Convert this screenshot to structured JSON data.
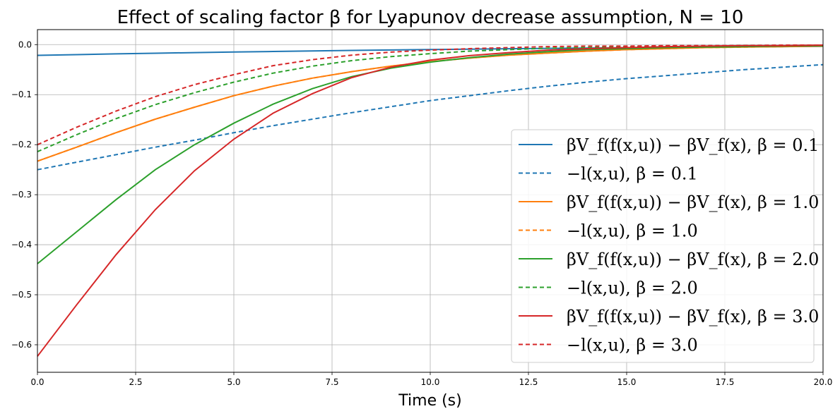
{
  "chart_data": {
    "type": "line",
    "title": "Effect of scaling factor β for Lyapunov decrease assumption, N = 10",
    "xlabel": "Time (s)",
    "ylabel": "",
    "xlim": [
      0,
      20
    ],
    "ylim": [
      -0.655,
      0.03
    ],
    "grid": true,
    "legend_position": "right",
    "xticks": [
      "0.0",
      "2.5",
      "5.0",
      "7.5",
      "10.0",
      "12.5",
      "15.0",
      "17.5",
      "20.0"
    ],
    "yticks": [
      "0.0",
      "−0.1",
      "−0.2",
      "−0.3",
      "−0.4",
      "−0.5",
      "−0.6"
    ],
    "x": [
      0,
      1,
      2,
      3,
      4,
      5,
      6,
      7,
      8,
      9,
      10,
      11,
      12,
      13,
      14,
      15,
      16,
      17,
      18,
      19,
      20
    ],
    "series": [
      {
        "name": "βV_f(f(x,u)) − βV_f(x), β = 0.1",
        "color": "#1f77b4",
        "dash": "solid",
        "values": [
          -0.0215,
          -0.02,
          -0.0185,
          -0.0172,
          -0.016,
          -0.0148,
          -0.0137,
          -0.0126,
          -0.0116,
          -0.0107,
          -0.0098,
          -0.009,
          -0.0082,
          -0.0075,
          -0.0068,
          -0.0061,
          -0.0055,
          -0.0049,
          -0.0044,
          -0.0039,
          -0.0034
        ]
      },
      {
        "name": "−l(x,u), β = 0.1",
        "color": "#1f77b4",
        "dash": "dashed",
        "values": [
          -0.25,
          -0.235,
          -0.22,
          -0.205,
          -0.191,
          -0.176,
          -0.162,
          -0.149,
          -0.136,
          -0.124,
          -0.112,
          -0.102,
          -0.092,
          -0.083,
          -0.075,
          -0.068,
          -0.062,
          -0.056,
          -0.05,
          -0.045,
          -0.04
        ]
      },
      {
        "name": "βV_f(f(x,u)) − βV_f(x), β = 1.0",
        "color": "#ff7f0e",
        "dash": "solid",
        "values": [
          -0.233,
          -0.205,
          -0.176,
          -0.149,
          -0.125,
          -0.102,
          -0.083,
          -0.067,
          -0.054,
          -0.043,
          -0.034,
          -0.027,
          -0.021,
          -0.017,
          -0.013,
          -0.01,
          -0.008,
          -0.006,
          -0.005,
          -0.004,
          -0.003
        ]
      },
      {
        "name": "−l(x,u), β = 1.0",
        "color": "#ff7f0e",
        "dash": "dashed",
        "values": [
          -0.233,
          -0.205,
          -0.176,
          -0.149,
          -0.125,
          -0.102,
          -0.083,
          -0.067,
          -0.054,
          -0.043,
          -0.034,
          -0.027,
          -0.021,
          -0.017,
          -0.013,
          -0.01,
          -0.008,
          -0.006,
          -0.005,
          -0.004,
          -0.003
        ]
      },
      {
        "name": "βV_f(f(x,u)) − βV_f(x), β = 2.0",
        "color": "#2ca02c",
        "dash": "solid",
        "values": [
          -0.438,
          -0.374,
          -0.31,
          -0.25,
          -0.2,
          -0.157,
          -0.119,
          -0.088,
          -0.064,
          -0.047,
          -0.035,
          -0.026,
          -0.019,
          -0.014,
          -0.01,
          -0.008,
          -0.006,
          -0.005,
          -0.004,
          -0.003,
          -0.002
        ]
      },
      {
        "name": "−l(x,u), β = 2.0",
        "color": "#2ca02c",
        "dash": "dashed",
        "values": [
          -0.214,
          -0.18,
          -0.148,
          -0.12,
          -0.096,
          -0.075,
          -0.057,
          -0.043,
          -0.032,
          -0.024,
          -0.018,
          -0.013,
          -0.01,
          -0.007,
          -0.006,
          -0.004,
          -0.003,
          -0.003,
          -0.002,
          -0.002,
          -0.002
        ]
      },
      {
        "name": "βV_f(f(x,u)) − βV_f(x), β = 3.0",
        "color": "#d62728",
        "dash": "solid",
        "values": [
          -0.623,
          -0.52,
          -0.42,
          -0.33,
          -0.252,
          -0.189,
          -0.137,
          -0.098,
          -0.066,
          -0.045,
          -0.031,
          -0.022,
          -0.016,
          -0.011,
          -0.008,
          -0.006,
          -0.004,
          -0.003,
          -0.002,
          -0.002,
          -0.001
        ]
      },
      {
        "name": "−l(x,u), β = 3.0",
        "color": "#d62728",
        "dash": "dashed",
        "values": [
          -0.2,
          -0.165,
          -0.133,
          -0.104,
          -0.08,
          -0.06,
          -0.042,
          -0.03,
          -0.021,
          -0.015,
          -0.011,
          -0.008,
          -0.006,
          -0.004,
          -0.003,
          -0.003,
          -0.002,
          -0.002,
          -0.002,
          -0.001,
          -0.001
        ]
      }
    ]
  }
}
